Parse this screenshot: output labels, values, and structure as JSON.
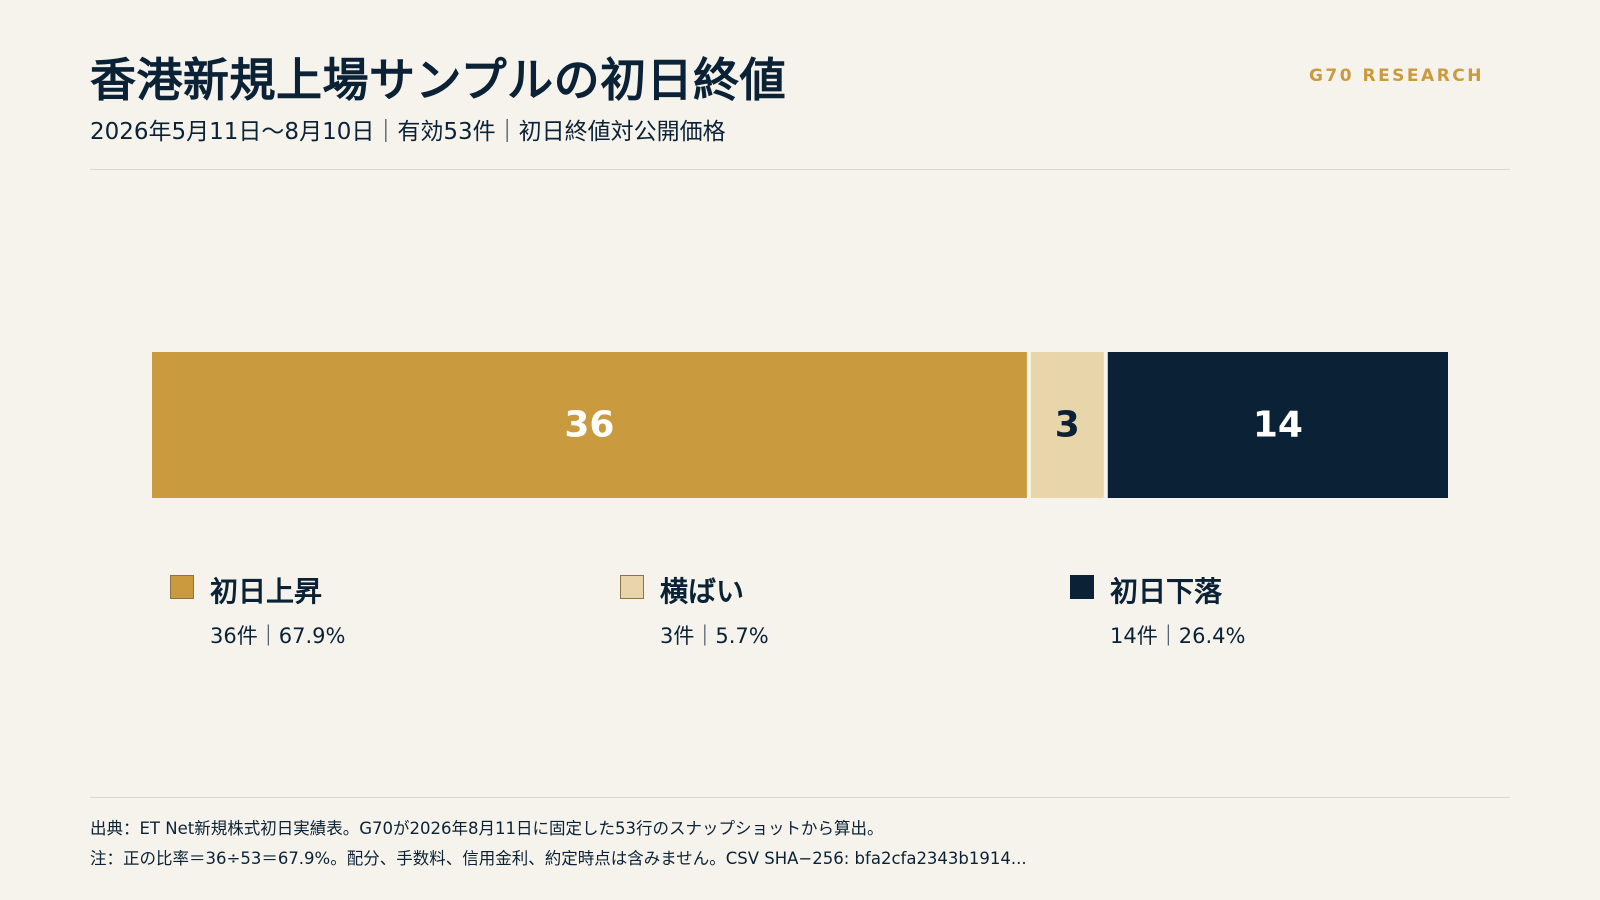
{
  "header": {
    "title": "香港新規上場サンプルの初日終値",
    "subtitle": "2026年5月11日〜8月10日｜有効53件｜初日終値対公開価格",
    "brand": "G70 RESEARCH"
  },
  "chart_data": {
    "type": "bar",
    "orientation": "horizontal-stacked",
    "total": 53,
    "categories": [
      "初日上昇",
      "横ばい",
      "初日下落"
    ],
    "values": [
      36,
      3,
      14
    ],
    "stats": [
      "36件｜67.9%",
      "3件｜5.7%",
      "14件｜26.4%"
    ],
    "colors": [
      "#c99a3e",
      "#e8d5a9",
      "#0b2236"
    ],
    "label_colors": [
      "#ffffff",
      "#0b2236",
      "#ffffff"
    ],
    "legend_position": "bottom",
    "grid": false
  },
  "footer": {
    "source": "出典：ET Net新規株式初日実績表。G70が2026年8月11日に固定した53行のスナップショットから算出。",
    "note": "注：正の比率＝36÷53＝67.9%。配分、手数料、信用金利、約定時点は含みません。CSV SHA−256: bfa2cfa2343b1914..."
  }
}
